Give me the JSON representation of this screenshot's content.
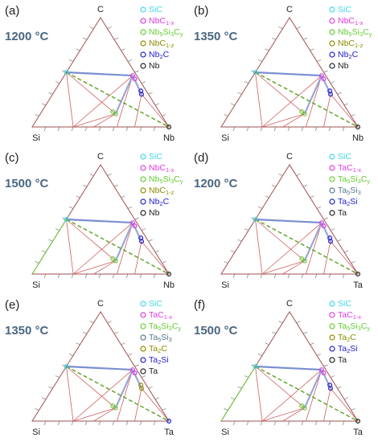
{
  "panels": [
    {
      "label": "(a)",
      "temperature": "1200 °C",
      "vertices": {
        "top": "C",
        "left": "Si",
        "right": "Nb"
      },
      "legend": [
        {
          "name": [
            "SiC"
          ],
          "color": "#3fd8e8"
        },
        {
          "name": [
            "NbC",
            "1-x"
          ],
          "color": "#e03ce0"
        },
        {
          "name": [
            "Nb",
            "5",
            "Si",
            "3",
            "C",
            "y"
          ],
          "color": "#66cc33"
        },
        {
          "name": [
            "NbC",
            "1-z"
          ],
          "color": "#8c8c00"
        },
        {
          "name": [
            "Nb",
            "2",
            "C"
          ],
          "color": "#2020d0"
        },
        {
          "name": [
            "Nb"
          ],
          "color": "#222222"
        }
      ]
    },
    {
      "label": "(b)",
      "temperature": "1350 °C",
      "vertices": {
        "top": "C",
        "left": "Si",
        "right": "Nb"
      },
      "legend": [
        {
          "name": [
            "SiC"
          ],
          "color": "#3fd8e8"
        },
        {
          "name": [
            "NbC",
            "1-x"
          ],
          "color": "#e03ce0"
        },
        {
          "name": [
            "Nb",
            "5",
            "Si",
            "3",
            "C",
            "y"
          ],
          "color": "#66cc33"
        },
        {
          "name": [
            "NbC",
            "1-z"
          ],
          "color": "#8c8c00"
        },
        {
          "name": [
            "Nb",
            "2",
            "C"
          ],
          "color": "#2020d0"
        },
        {
          "name": [
            "Nb"
          ],
          "color": "#222222"
        }
      ]
    },
    {
      "label": "(c)",
      "temperature": "1500 °C",
      "vertices": {
        "top": "C",
        "left": "Si",
        "right": "Nb"
      },
      "legend": [
        {
          "name": [
            "SiC"
          ],
          "color": "#3fd8e8"
        },
        {
          "name": [
            "NbC",
            "1-x"
          ],
          "color": "#e03ce0"
        },
        {
          "name": [
            "Nb",
            "5",
            "Si",
            "3",
            "C",
            "y"
          ],
          "color": "#66cc33"
        },
        {
          "name": [
            "NbC",
            "1-z"
          ],
          "color": "#8c8c00"
        },
        {
          "name": [
            "Nb",
            "2",
            "C"
          ],
          "color": "#2020d0"
        },
        {
          "name": [
            "Nb"
          ],
          "color": "#222222"
        }
      ]
    },
    {
      "label": "(d)",
      "temperature": "1200 °C",
      "vertices": {
        "top": "C",
        "left": "Si",
        "right": "Ta"
      },
      "legend": [
        {
          "name": [
            "SiC"
          ],
          "color": "#3fd8e8"
        },
        {
          "name": [
            "TaC",
            "1-x"
          ],
          "color": "#e03ce0"
        },
        {
          "name": [
            "Ta",
            "5",
            "Si",
            "3",
            "C",
            "y"
          ],
          "color": "#66cc33"
        },
        {
          "name": [
            "Ta",
            "5",
            "Si",
            "3"
          ],
          "color": "#557a8c"
        },
        {
          "name": [
            "Ta",
            "2",
            "Si"
          ],
          "color": "#2020d0"
        },
        {
          "name": [
            "Ta"
          ],
          "color": "#222222"
        }
      ]
    },
    {
      "label": "(e)",
      "temperature": "1350 °C",
      "vertices": {
        "top": "C",
        "left": "Si",
        "right": "Ta"
      },
      "legend": [
        {
          "name": [
            "SiC"
          ],
          "color": "#3fd8e8"
        },
        {
          "name": [
            "TaC",
            "1-x"
          ],
          "color": "#e03ce0"
        },
        {
          "name": [
            "Ta",
            "5",
            "Si",
            "3",
            "C",
            "y"
          ],
          "color": "#66cc33"
        },
        {
          "name": [
            "Ta",
            "5",
            "Si",
            "3"
          ],
          "color": "#557a8c"
        },
        {
          "name": [
            "Ta",
            "2",
            "C"
          ],
          "color": "#8c8c00"
        },
        {
          "name": [
            "Ta",
            "2",
            "Si"
          ],
          "color": "#2020d0"
        },
        {
          "name": [
            "Ta"
          ],
          "color": "#222222"
        }
      ]
    },
    {
      "label": "(f)",
      "temperature": "1500 °C",
      "vertices": {
        "top": "C",
        "left": "Si",
        "right": "Ta"
      },
      "legend": [
        {
          "name": [
            "SiC"
          ],
          "color": "#3fd8e8"
        },
        {
          "name": [
            "TaC",
            "1-x"
          ],
          "color": "#e03ce0"
        },
        {
          "name": [
            "Ta",
            "5",
            "Si",
            "3",
            "C",
            "y"
          ],
          "color": "#66cc33"
        },
        {
          "name": [
            "Ta",
            "2",
            "C"
          ],
          "color": "#8c8c00"
        },
        {
          "name": [
            "Ta",
            "2",
            "Si"
          ],
          "color": "#2020d0"
        },
        {
          "name": [
            "Ta"
          ],
          "color": "#222222"
        }
      ]
    }
  ]
}
